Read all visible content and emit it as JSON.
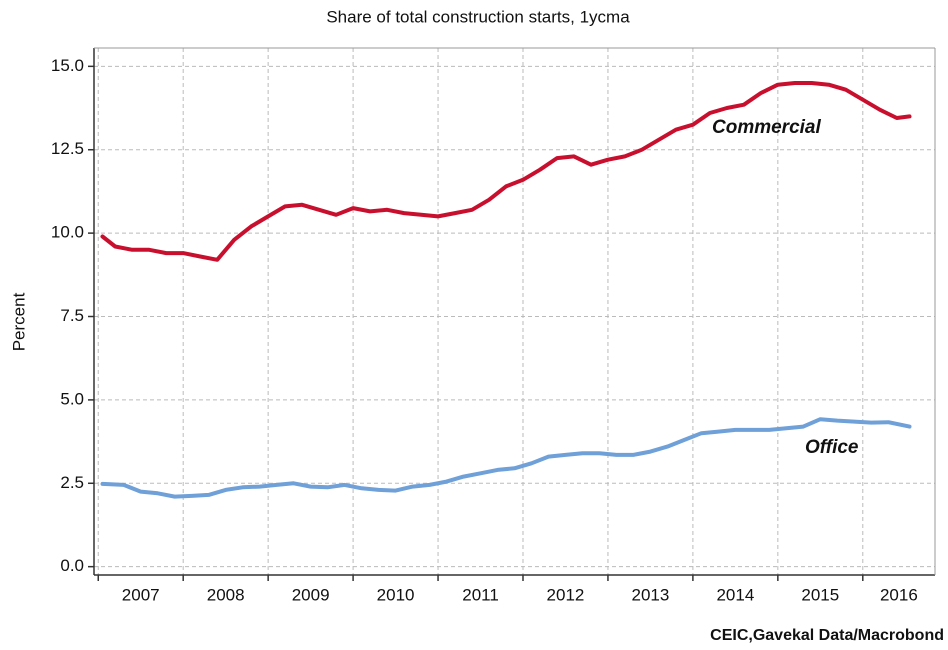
{
  "chart_data": {
    "type": "line",
    "title": "Share of total construction starts, 1ycma",
    "y_label": "Percent",
    "source": "CEIC,Gavekal Data/Macrobond",
    "xlim": [
      2006.95,
      2016.85
    ],
    "xticks": [
      2007,
      2008,
      2009,
      2010,
      2011,
      2012,
      2013,
      2014,
      2015,
      2016
    ],
    "ylim": [
      -0.25,
      15.55
    ],
    "yticks": [
      {
        "value": 0,
        "label": "0.0"
      },
      2.5,
      {
        "value": 5,
        "label": "5.0"
      },
      7.5,
      {
        "value": 10,
        "label": "10.0"
      },
      12.5,
      {
        "value": 15,
        "label": "15.0"
      }
    ],
    "grid": true,
    "series": [
      {
        "name": "Commercial",
        "color": "#c8102e",
        "x": [
          2007.05,
          2007.2,
          2007.4,
          2007.6,
          2007.8,
          2008.0,
          2008.2,
          2008.4,
          2008.6,
          2008.8,
          2009.0,
          2009.2,
          2009.4,
          2009.6,
          2009.8,
          2010.0,
          2010.2,
          2010.4,
          2010.6,
          2010.8,
          2011.0,
          2011.2,
          2011.4,
          2011.6,
          2011.8,
          2012.0,
          2012.2,
          2012.4,
          2012.6,
          2012.8,
          2013.0,
          2013.2,
          2013.4,
          2013.6,
          2013.8,
          2014.0,
          2014.2,
          2014.4,
          2014.6,
          2014.8,
          2015.0,
          2015.2,
          2015.4,
          2015.6,
          2015.8,
          2016.0,
          2016.2,
          2016.4,
          2016.55
        ],
        "values": [
          9.9,
          9.6,
          9.5,
          9.5,
          9.4,
          9.4,
          9.3,
          9.2,
          9.8,
          10.2,
          10.5,
          10.8,
          10.85,
          10.7,
          10.55,
          10.75,
          10.65,
          10.7,
          10.6,
          10.55,
          10.5,
          10.6,
          10.7,
          11.0,
          11.4,
          11.6,
          11.9,
          12.25,
          12.3,
          12.05,
          12.2,
          12.3,
          12.5,
          12.8,
          13.1,
          13.25,
          13.6,
          13.75,
          13.85,
          14.2,
          14.45,
          14.5,
          14.5,
          14.45,
          14.3,
          14.0,
          13.7,
          13.45,
          13.5
        ]
      },
      {
        "name": "Office",
        "color": "#6fa0d8",
        "x": [
          2007.05,
          2007.3,
          2007.5,
          2007.7,
          2007.9,
          2008.1,
          2008.3,
          2008.5,
          2008.7,
          2008.9,
          2009.1,
          2009.3,
          2009.5,
          2009.7,
          2009.9,
          2010.1,
          2010.3,
          2010.5,
          2010.7,
          2010.9,
          2011.1,
          2011.3,
          2011.5,
          2011.7,
          2011.9,
          2012.1,
          2012.3,
          2012.5,
          2012.7,
          2012.9,
          2013.1,
          2013.3,
          2013.5,
          2013.7,
          2013.9,
          2014.1,
          2014.3,
          2014.5,
          2014.7,
          2014.9,
          2015.1,
          2015.3,
          2015.5,
          2015.7,
          2015.9,
          2016.1,
          2016.3,
          2016.55
        ],
        "values": [
          2.48,
          2.45,
          2.25,
          2.2,
          2.1,
          2.12,
          2.15,
          2.3,
          2.38,
          2.4,
          2.45,
          2.5,
          2.4,
          2.38,
          2.45,
          2.35,
          2.3,
          2.28,
          2.4,
          2.45,
          2.55,
          2.7,
          2.8,
          2.9,
          2.95,
          3.1,
          3.3,
          3.35,
          3.4,
          3.4,
          3.35,
          3.35,
          3.45,
          3.6,
          3.8,
          4.0,
          4.05,
          4.1,
          4.1,
          4.1,
          4.15,
          4.2,
          4.42,
          4.38,
          4.35,
          4.32,
          4.33,
          4.2
        ]
      }
    ]
  }
}
